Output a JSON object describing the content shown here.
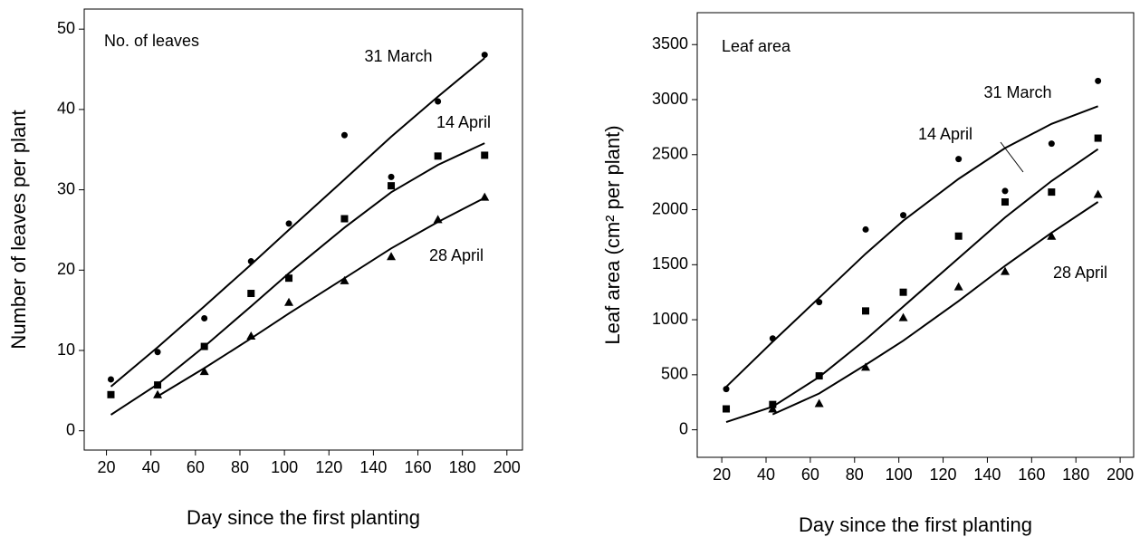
{
  "chart_data": [
    {
      "type": "scatter",
      "label": "No. of leaves",
      "xlabel": "Day since the first planting",
      "ylabel": "Number of leaves per plant",
      "xlim": [
        10,
        207
      ],
      "ylim": [
        -2.4,
        52.5
      ],
      "xticks": [
        20,
        40,
        60,
        80,
        100,
        120,
        140,
        160,
        180,
        200
      ],
      "yticks": [
        0,
        10,
        20,
        30,
        40,
        50
      ],
      "x": [
        22,
        43,
        64,
        85,
        102,
        127,
        148,
        169,
        190
      ],
      "series": [
        {
          "name": "31 March",
          "marker": "circle",
          "color": "#000000",
          "values": [
            6.4,
            9.8,
            14,
            21.1,
            25.8,
            36.8,
            31.6,
            41,
            46.8
          ],
          "fit": [
            5.5,
            10.4,
            15.5,
            20.7,
            25,
            31.3,
            36.6,
            41.6,
            46.4
          ]
        },
        {
          "name": "14 April",
          "marker": "square",
          "color": "#000000",
          "values": [
            4.5,
            5.7,
            10.5,
            17.1,
            19,
            26.4,
            30.5,
            34.2,
            34.3
          ],
          "fit": [
            2,
            5.8,
            10.5,
            15.5,
            19.6,
            25.3,
            29.7,
            33.1,
            35.8
          ]
        },
        {
          "name": "28 April",
          "marker": "triangle",
          "color": "#000000",
          "values": [
            null,
            4.5,
            7.4,
            11.8,
            16,
            18.7,
            21.7,
            26.3,
            29.1
          ],
          "fit": [
            null,
            4.3,
            7.8,
            11.5,
            14.6,
            19,
            22.7,
            26,
            29
          ]
        }
      ]
    },
    {
      "type": "scatter",
      "label": "Leaf area",
      "xlabel": "Day since the first planting",
      "ylabel": "Leaf area (cm² per plant)",
      "xlim": [
        8.9,
        206.1
      ],
      "ylim": [
        -250,
        3790
      ],
      "xticks": [
        20,
        40,
        60,
        80,
        100,
        120,
        140,
        160,
        180,
        200
      ],
      "yticks": [
        0,
        500,
        1000,
        1500,
        2000,
        2500,
        3000,
        3500
      ],
      "x": [
        22,
        43,
        64,
        85,
        102,
        127,
        148,
        169,
        190
      ],
      "series": [
        {
          "name": "31 March",
          "marker": "circle",
          "color": "#000000",
          "values": [
            370,
            830,
            1160,
            1820,
            1950,
            2460,
            2170,
            2600,
            3170
          ],
          "fit": [
            390,
            800,
            1200,
            1600,
            1900,
            2280,
            2560,
            2780,
            2940
          ]
        },
        {
          "name": "14 April",
          "marker": "square",
          "color": "#000000",
          "values": [
            190,
            230,
            490,
            1080,
            1250,
            1760,
            2070,
            2160,
            2650
          ],
          "fit": [
            70,
            210,
            480,
            820,
            1120,
            1560,
            1930,
            2260,
            2550
          ]
        },
        {
          "name": "28 April",
          "marker": "triangle",
          "color": "#000000",
          "values": [
            null,
            190,
            240,
            570,
            1020,
            1300,
            1440,
            1760,
            2140
          ],
          "fit": [
            null,
            140,
            330,
            590,
            810,
            1170,
            1490,
            1790,
            2070
          ]
        }
      ]
    }
  ]
}
